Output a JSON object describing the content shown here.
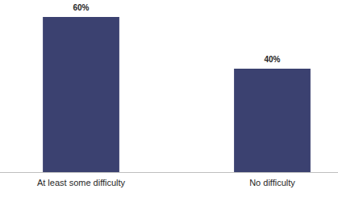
{
  "chart_data": {
    "type": "bar",
    "categories": [
      "At least some difficulty",
      "No difficulty"
    ],
    "values": [
      60,
      40
    ],
    "value_labels": [
      "60%",
      "40%"
    ],
    "color": "#3b4170",
    "ylim": [
      0,
      60
    ],
    "data_labels": true,
    "tick_labels": "x"
  }
}
